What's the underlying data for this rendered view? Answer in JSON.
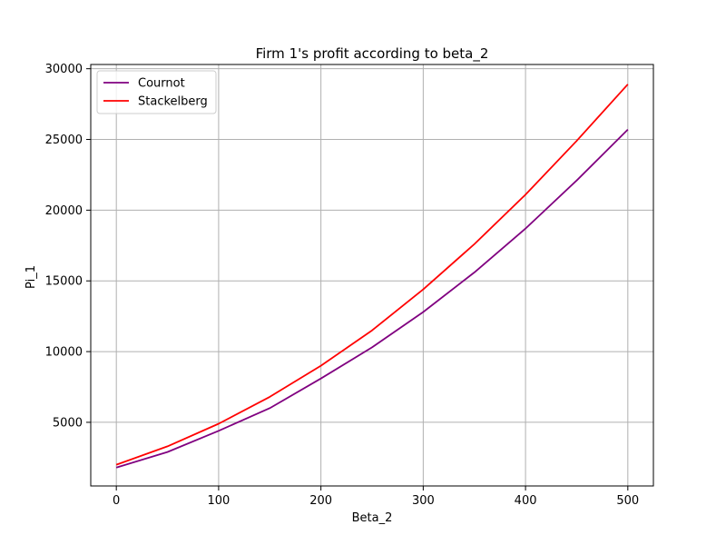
{
  "chart_data": {
    "type": "line",
    "title": "Firm 1's profit according to beta_2",
    "xlabel": "Beta_2",
    "ylabel": "Pi_1",
    "xlim": [
      -25,
      525
    ],
    "ylim": [
      500,
      30300
    ],
    "xticks": [
      0,
      100,
      200,
      300,
      400,
      500
    ],
    "yticks": [
      5000,
      10000,
      15000,
      20000,
      25000,
      30000
    ],
    "grid": true,
    "legend_position": "top-left",
    "x": [
      0,
      50,
      100,
      150,
      200,
      250,
      300,
      350,
      400,
      450,
      500
    ],
    "series": [
      {
        "name": "Cournot",
        "color": "#800080",
        "values": [
          1800,
          2900,
          4400,
          6000,
          8100,
          10300,
          12800,
          15600,
          18700,
          22100,
          25700
        ]
      },
      {
        "name": "Stackelberg",
        "color": "#ff0000",
        "values": [
          2000,
          3300,
          4900,
          6800,
          9000,
          11500,
          14400,
          17600,
          21100,
          24900,
          28900
        ]
      }
    ]
  }
}
